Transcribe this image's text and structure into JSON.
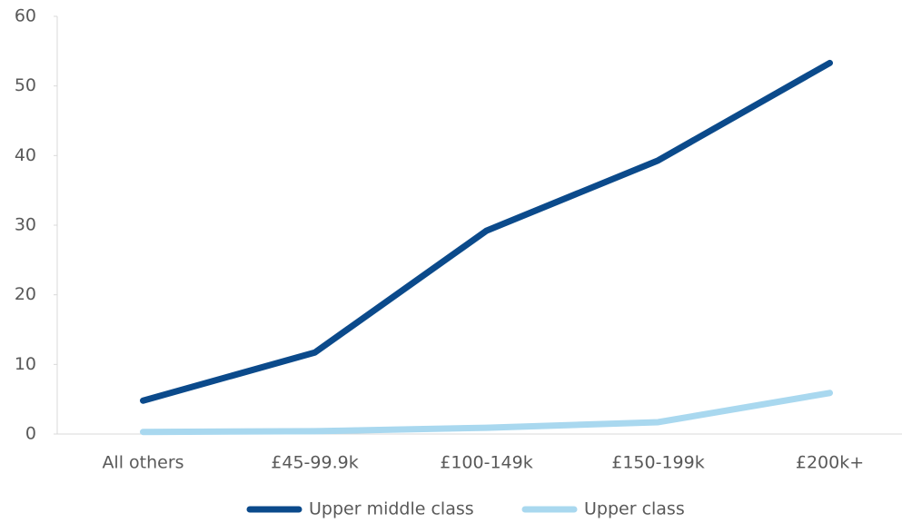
{
  "chart_data": {
    "type": "line",
    "categories": [
      "All others",
      "£45-99.9k",
      "£100-149k",
      "£150-199k",
      "£200k+"
    ],
    "series": [
      {
        "name": "Upper middle class",
        "color": "#0b4a8b",
        "values": [
          4.8,
          11.7,
          29.2,
          39.3,
          53.3
        ]
      },
      {
        "name": "Upper class",
        "color": "#a9d8ef",
        "values": [
          0.3,
          0.4,
          0.9,
          1.7,
          5.9
        ]
      }
    ],
    "ylim": [
      0,
      60
    ],
    "yticks": [
      0,
      10,
      20,
      30,
      40,
      50,
      60
    ],
    "grid": false,
    "legend": "bottom"
  }
}
